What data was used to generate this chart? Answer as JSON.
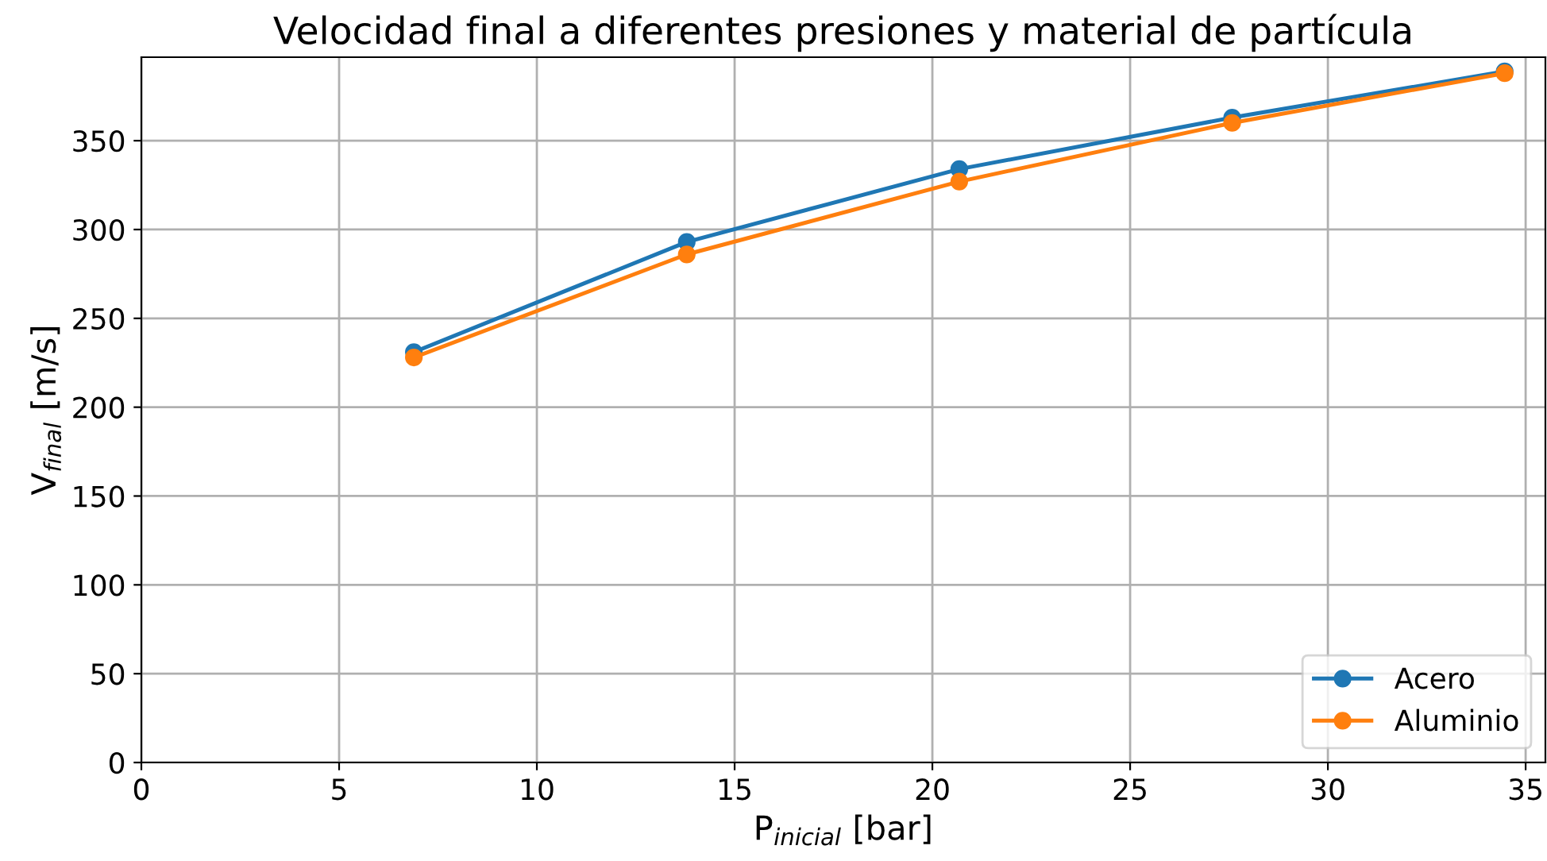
{
  "chart_data": {
    "type": "line",
    "title": "Velocidad final a diferentes presiones y material de partícula",
    "xlabel": "P$_{inicial}$ [bar]",
    "ylabel": "V$_{final}$ [m/s]",
    "x": [
      6.89,
      13.79,
      20.68,
      27.58,
      34.47
    ],
    "series": [
      {
        "name": "Acero",
        "color": "#1f77b4",
        "values": [
          231,
          293,
          334,
          363,
          389
        ]
      },
      {
        "name": "Aluminio",
        "color": "#ff7f0e",
        "values": [
          228,
          286,
          327,
          360,
          388
        ]
      }
    ],
    "xlim": [
      0,
      35.5
    ],
    "xticks": [
      0,
      5,
      10,
      15,
      20,
      25,
      30,
      35
    ],
    "ylim": [
      0,
      397
    ],
    "yticks": [
      0,
      50,
      100,
      150,
      200,
      250,
      300,
      350
    ],
    "grid": true,
    "legend": "bottom right",
    "marker": "circle",
    "line_style": "solid"
  }
}
